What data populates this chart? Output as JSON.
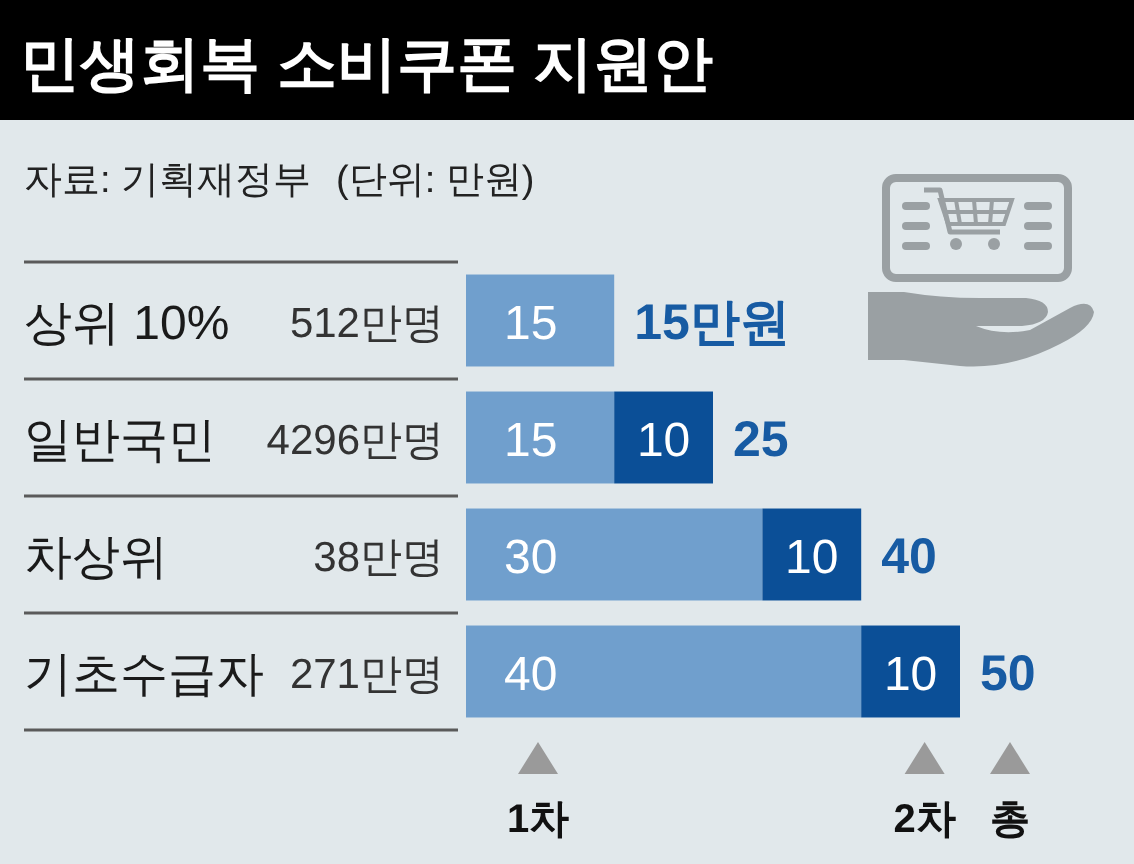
{
  "chart_data": {
    "type": "bar",
    "orientation": "horizontal",
    "stacked": true,
    "title": "민생회복 소비쿠폰 지원안",
    "categories": [
      "상위 10%",
      "일반국민",
      "차상위",
      "기초수급자"
    ],
    "series": [
      {
        "name": "1차",
        "color": "#709fcd",
        "values": [
          15,
          15,
          30,
          40
        ]
      },
      {
        "name": "2차",
        "color": "#0b4f97",
        "values": [
          null,
          10,
          10,
          10
        ]
      }
    ],
    "data_labels": true,
    "totals": [
      "15만원",
      "25",
      "40",
      "50"
    ],
    "legend": "bottom",
    "annotations": [
      "자료: 기획재정부",
      "(단위: 만원)",
      "512만명",
      "4296만명",
      "38만명",
      "271만명",
      "총"
    ]
  }
}
